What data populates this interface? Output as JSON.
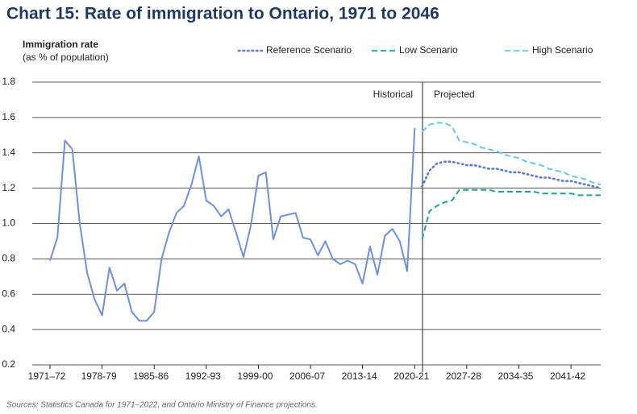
{
  "chart_data": {
    "type": "line",
    "title": "Chart 15: Rate of immigration to Ontario, 1971 to 2046",
    "y_label": [
      "Immigration rate",
      "(as % of population)"
    ],
    "annotations": [
      "Historical",
      "Projected"
    ],
    "source": "Sources: Statistics Canada for 1971–2022, and Ontario Ministry of Finance projections.",
    "categories": [
      "1971–72",
      null,
      null,
      null,
      null,
      null,
      null,
      "1978-79",
      null,
      null,
      null,
      null,
      null,
      null,
      "1985-86",
      null,
      null,
      null,
      null,
      null,
      null,
      "1992-93",
      null,
      null,
      null,
      null,
      null,
      null,
      "1999-00",
      null,
      null,
      null,
      null,
      null,
      null,
      "2006-07",
      null,
      null,
      null,
      null,
      null,
      null,
      "2013-14",
      null,
      null,
      null,
      null,
      null,
      null,
      "2020-21",
      null,
      null,
      null,
      null,
      null,
      null,
      "2027-28",
      null,
      null,
      null,
      null,
      null,
      null,
      "2034-35",
      null,
      null,
      null,
      null,
      null,
      null,
      "2041-42",
      null,
      null,
      null,
      null
    ],
    "series": [
      {
        "name": null,
        "color": "#6f8fe6",
        "style": "solid",
        "values": [
          0.79,
          0.92,
          1.47,
          1.42,
          1.0,
          0.72,
          0.57,
          0.48,
          0.75,
          0.62,
          0.66,
          0.5,
          0.45,
          0.45,
          0.5,
          0.8,
          0.95,
          1.06,
          1.1,
          1.22,
          1.38,
          1.13,
          1.1,
          1.04,
          1.08,
          0.95,
          0.81,
          0.99,
          1.27,
          1.29,
          0.91,
          1.04,
          1.05,
          1.06,
          0.92,
          0.91,
          0.82,
          0.9,
          0.8,
          0.77,
          0.79,
          0.77,
          0.66,
          0.87,
          0.71,
          0.93,
          0.97,
          0.9,
          0.73,
          1.54,
          null,
          null,
          null,
          null,
          null,
          null,
          null,
          null,
          null,
          null,
          null,
          null,
          null,
          null,
          null,
          null,
          null,
          null,
          null,
          null,
          null,
          null,
          null,
          null,
          null
        ]
      },
      {
        "name": "Reference Scenario",
        "color": "#5a78e0",
        "style": "dotted",
        "values": [
          null,
          null,
          null,
          null,
          null,
          null,
          null,
          null,
          null,
          null,
          null,
          null,
          null,
          null,
          null,
          null,
          null,
          null,
          null,
          null,
          null,
          null,
          null,
          null,
          null,
          null,
          null,
          null,
          null,
          null,
          null,
          null,
          null,
          null,
          null,
          null,
          null,
          null,
          null,
          null,
          null,
          null,
          null,
          null,
          null,
          null,
          null,
          null,
          null,
          null,
          1.21,
          1.3,
          1.34,
          1.35,
          1.35,
          1.34,
          1.33,
          1.33,
          1.32,
          1.31,
          1.31,
          1.3,
          1.29,
          1.29,
          1.28,
          1.27,
          1.26,
          1.26,
          1.25,
          1.24,
          1.24,
          1.23,
          1.22,
          1.21,
          1.2
        ]
      },
      {
        "name": "Low Scenario",
        "color": "#17a3a0",
        "style": "dashed",
        "values": [
          null,
          null,
          null,
          null,
          null,
          null,
          null,
          null,
          null,
          null,
          null,
          null,
          null,
          null,
          null,
          null,
          null,
          null,
          null,
          null,
          null,
          null,
          null,
          null,
          null,
          null,
          null,
          null,
          null,
          null,
          null,
          null,
          null,
          null,
          null,
          null,
          null,
          null,
          null,
          null,
          null,
          null,
          null,
          null,
          null,
          null,
          null,
          null,
          null,
          null,
          0.91,
          1.07,
          1.1,
          1.12,
          1.13,
          1.19,
          1.19,
          1.19,
          1.19,
          1.19,
          1.18,
          1.18,
          1.18,
          1.18,
          1.18,
          1.18,
          1.17,
          1.17,
          1.17,
          1.17,
          1.17,
          1.16,
          1.16,
          1.16,
          1.16
        ]
      },
      {
        "name": "High Scenario",
        "color": "#5fcbea",
        "style": "dashed",
        "values": [
          null,
          null,
          null,
          null,
          null,
          null,
          null,
          null,
          null,
          null,
          null,
          null,
          null,
          null,
          null,
          null,
          null,
          null,
          null,
          null,
          null,
          null,
          null,
          null,
          null,
          null,
          null,
          null,
          null,
          null,
          null,
          null,
          null,
          null,
          null,
          null,
          null,
          null,
          null,
          null,
          null,
          null,
          null,
          null,
          null,
          null,
          null,
          null,
          null,
          null,
          1.52,
          1.56,
          1.57,
          1.57,
          1.55,
          1.47,
          1.46,
          1.45,
          1.43,
          1.42,
          1.41,
          1.39,
          1.38,
          1.37,
          1.35,
          1.34,
          1.33,
          1.31,
          1.3,
          1.29,
          1.27,
          1.26,
          1.25,
          1.23,
          1.22
        ]
      }
    ],
    "ylim": [
      0.2,
      1.8
    ],
    "yticks": [
      0.2,
      0.4,
      0.6,
      0.8,
      {
        "value": 1,
        "label": "1.0"
      },
      1.2,
      1.4,
      1.6,
      1.8
    ],
    "grid": true
  }
}
